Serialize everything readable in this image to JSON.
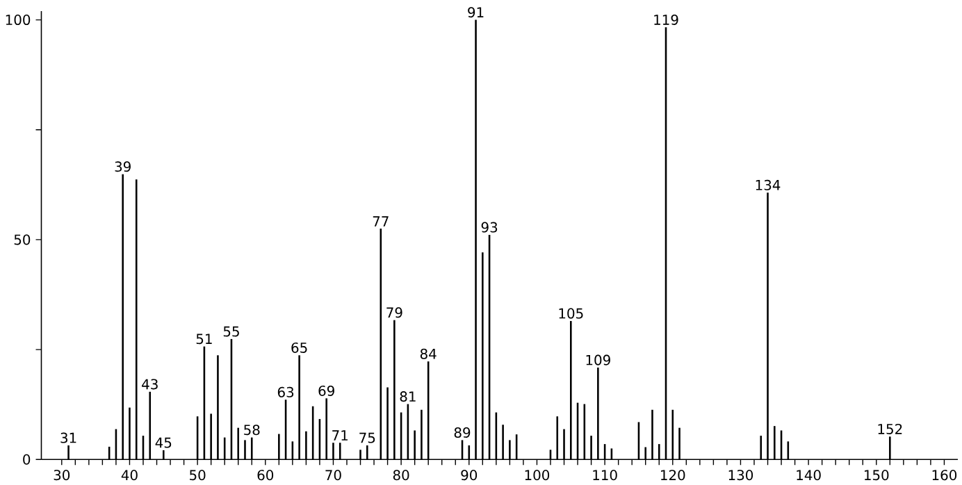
{
  "chart_data": {
    "type": "bar",
    "color": "#000000",
    "x": [
      31,
      37,
      38,
      39,
      40,
      41,
      42,
      43,
      45,
      50,
      51,
      52,
      53,
      54,
      55,
      56,
      57,
      58,
      62,
      63,
      64,
      65,
      66,
      67,
      68,
      69,
      70,
      71,
      74,
      75,
      77,
      78,
      79,
      80,
      81,
      82,
      83,
      84,
      89,
      90,
      91,
      92,
      93,
      94,
      95,
      96,
      97,
      102,
      103,
      104,
      105,
      106,
      107,
      108,
      109,
      110,
      111,
      115,
      116,
      117,
      118,
      119,
      120,
      121,
      133,
      134,
      135,
      136,
      137,
      152
    ],
    "values": [
      3.2,
      2.9,
      6.9,
      64.9,
      11.8,
      63.7,
      5.4,
      15.4,
      2.1,
      9.8,
      25.7,
      10.4,
      23.7,
      5.0,
      27.4,
      7.2,
      4.4,
      5.0,
      5.8,
      13.6,
      4.1,
      23.7,
      6.4,
      12.1,
      9.2,
      13.9,
      3.8,
      3.8,
      2.2,
      3.2,
      52.5,
      16.4,
      31.7,
      10.7,
      12.6,
      6.6,
      11.3,
      22.3,
      4.4,
      3.2,
      100,
      47.1,
      51.1,
      10.7,
      7.9,
      4.4,
      5.7,
      2.2,
      9.8,
      6.9,
      31.5,
      12.9,
      12.6,
      5.4,
      20.9,
      3.5,
      2.5,
      8.5,
      2.8,
      11.3,
      3.5,
      98.3,
      11.3,
      7.2,
      5.4,
      60.7,
      7.6,
      6.6,
      4.1,
      5.2
    ],
    "xlim": [
      27,
      162
    ],
    "ylim": [
      0,
      102
    ],
    "xticks": [
      30,
      {
        "value": 32,
        "label": null
      },
      {
        "value": 34,
        "label": null
      },
      {
        "value": 36,
        "label": null
      },
      {
        "value": 38,
        "label": null
      },
      40,
      {
        "value": 42,
        "label": null
      },
      {
        "value": 44,
        "label": null
      },
      {
        "value": 46,
        "label": null
      },
      {
        "value": 48,
        "label": null
      },
      50,
      {
        "value": 52,
        "label": null
      },
      {
        "value": 54,
        "label": null
      },
      {
        "value": 56,
        "label": null
      },
      {
        "value": 58,
        "label": null
      },
      60,
      {
        "value": 62,
        "label": null
      },
      {
        "value": 64,
        "label": null
      },
      {
        "value": 66,
        "label": null
      },
      {
        "value": 68,
        "label": null
      },
      70,
      {
        "value": 72,
        "label": null
      },
      {
        "value": 74,
        "label": null
      },
      {
        "value": 76,
        "label": null
      },
      {
        "value": 78,
        "label": null
      },
      80,
      {
        "value": 82,
        "label": null
      },
      {
        "value": 84,
        "label": null
      },
      {
        "value": 86,
        "label": null
      },
      {
        "value": 88,
        "label": null
      },
      90,
      {
        "value": 92,
        "label": null
      },
      {
        "value": 94,
        "label": null
      },
      {
        "value": 96,
        "label": null
      },
      {
        "value": 98,
        "label": null
      },
      100,
      {
        "value": 102,
        "label": null
      },
      {
        "value": 104,
        "label": null
      },
      {
        "value": 106,
        "label": null
      },
      {
        "value": 108,
        "label": null
      },
      110,
      {
        "value": 112,
        "label": null
      },
      {
        "value": 114,
        "label": null
      },
      {
        "value": 116,
        "label": null
      },
      {
        "value": 118,
        "label": null
      },
      120,
      {
        "value": 122,
        "label": null
      },
      {
        "value": 124,
        "label": null
      },
      {
        "value": 126,
        "label": null
      },
      {
        "value": 128,
        "label": null
      },
      130,
      {
        "value": 132,
        "label": null
      },
      {
        "value": 134,
        "label": null
      },
      {
        "value": 136,
        "label": null
      },
      {
        "value": 138,
        "label": null
      },
      140,
      {
        "value": 142,
        "label": null
      },
      {
        "value": 144,
        "label": null
      },
      {
        "value": 146,
        "label": null
      },
      {
        "value": 148,
        "label": null
      },
      150,
      {
        "value": 152,
        "label": null
      },
      {
        "value": 154,
        "label": null
      },
      {
        "value": 156,
        "label": null
      },
      {
        "value": 158,
        "label": null
      },
      160
    ],
    "yticks": [
      0,
      {
        "value": 25,
        "label": null
      },
      50,
      {
        "value": 75,
        "label": null
      },
      100
    ],
    "annotations": [
      {
        "text": "31",
        "x": 31,
        "y": 3.2
      },
      {
        "text": "39",
        "x": 39,
        "y": 64.9
      },
      {
        "text": "43",
        "x": 43,
        "y": 15.4
      },
      {
        "text": "45",
        "x": 45,
        "y": 2.1
      },
      {
        "text": "51",
        "x": 51,
        "y": 25.7
      },
      {
        "text": "55",
        "x": 55,
        "y": 27.4
      },
      {
        "text": "58",
        "x": 58,
        "y": 5.0
      },
      {
        "text": "63",
        "x": 63,
        "y": 13.6
      },
      {
        "text": "65",
        "x": 65,
        "y": 23.7
      },
      {
        "text": "69",
        "x": 69,
        "y": 13.9
      },
      {
        "text": "71",
        "x": 71,
        "y": 3.8
      },
      {
        "text": "75",
        "x": 75,
        "y": 3.2
      },
      {
        "text": "77",
        "x": 77,
        "y": 52.5
      },
      {
        "text": "79",
        "x": 79,
        "y": 31.7
      },
      {
        "text": "81",
        "x": 81,
        "y": 12.6
      },
      {
        "text": "84",
        "x": 84,
        "y": 22.3
      },
      {
        "text": "89",
        "x": 89,
        "y": 4.4
      },
      {
        "text": "91",
        "x": 91,
        "y": 100
      },
      {
        "text": "93",
        "x": 93,
        "y": 51.1
      },
      {
        "text": "105",
        "x": 105,
        "y": 31.5
      },
      {
        "text": "109",
        "x": 109,
        "y": 20.9
      },
      {
        "text": "119",
        "x": 119,
        "y": 98.3
      },
      {
        "text": "134",
        "x": 134,
        "y": 60.7
      },
      {
        "text": "152",
        "x": 152,
        "y": 5.2
      }
    ]
  }
}
